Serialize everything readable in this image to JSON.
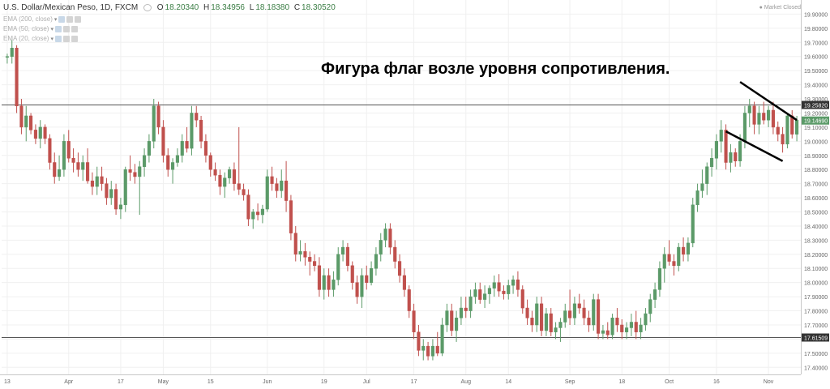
{
  "header": {
    "symbol": "U.S. Dollar/Mexican Peso, 1D, FXCM",
    "open_key": "O",
    "open": "18.20340",
    "high_key": "H",
    "high": "18.34956",
    "low_key": "L",
    "low": "18.18380",
    "close_key": "C",
    "close": "18.30520",
    "eye_icon": "eye-icon",
    "market_status": "Market Closed"
  },
  "indicators": [
    {
      "label": "EMA (200, close)"
    },
    {
      "label": "EMA (50, close)"
    },
    {
      "label": "EMA (20, close)"
    }
  ],
  "annotation": "Фигура флаг возле уровня сопротивления.",
  "colors": {
    "up": "#5b9a68",
    "down": "#c0504d",
    "level": "#555555",
    "last_price_bg": "#5b9a68"
  },
  "chart_data": {
    "type": "candlestick",
    "ylim": [
      17.35,
      20.0
    ],
    "y_ticks": [
      "17.40000",
      "17.50000",
      "17.60000",
      "17.70000",
      "17.80000",
      "17.90000",
      "18.00000",
      "18.10000",
      "18.20000",
      "18.30000",
      "18.40000",
      "18.50000",
      "18.60000",
      "18.70000",
      "18.80000",
      "18.90000",
      "19.00000",
      "19.10000",
      "19.20000",
      "19.30000",
      "19.40000",
      "19.50000",
      "19.60000",
      "19.70000",
      "19.80000",
      "19.90000",
      "20.00000"
    ],
    "x_ticks": [
      {
        "label": "13",
        "index": 0
      },
      {
        "label": "Apr",
        "index": 13
      },
      {
        "label": "17",
        "index": 24
      },
      {
        "label": "May",
        "index": 33
      },
      {
        "label": "15",
        "index": 43
      },
      {
        "label": "Jun",
        "index": 55
      },
      {
        "label": "19",
        "index": 67
      },
      {
        "label": "Jul",
        "index": 76
      },
      {
        "label": "17",
        "index": 86
      },
      {
        "label": "Aug",
        "index": 97
      },
      {
        "label": "14",
        "index": 106
      },
      {
        "label": "Sep",
        "index": 119
      },
      {
        "label": "18",
        "index": 130
      },
      {
        "label": "Oct",
        "index": 140
      },
      {
        "label": "16",
        "index": 150
      },
      {
        "label": "Nov",
        "index": 161
      }
    ],
    "levels": [
      {
        "label": "19.25820",
        "value": 19.2582
      },
      {
        "label": "17.61509",
        "value": 17.61509
      }
    ],
    "last_price": {
      "label": "19.14690",
      "value": 19.1469
    },
    "trendlines": [
      {
        "start": {
          "index": 155,
          "value": 19.42
        },
        "end": {
          "index": 167,
          "value": 19.15
        }
      },
      {
        "start": {
          "index": 152,
          "value": 19.07
        },
        "end": {
          "index": 164,
          "value": 18.86
        }
      }
    ],
    "candles": [
      [
        19.6,
        19.62,
        19.55,
        19.6
      ],
      [
        19.6,
        19.72,
        19.55,
        19.66
      ],
      [
        19.66,
        19.68,
        19.2,
        19.25
      ],
      [
        19.25,
        19.3,
        19.05,
        19.1
      ],
      [
        19.1,
        19.25,
        19.0,
        19.18
      ],
      [
        19.18,
        19.2,
        19.05,
        19.08
      ],
      [
        19.08,
        19.12,
        18.98,
        19.02
      ],
      [
        19.02,
        19.15,
        18.95,
        19.1
      ],
      [
        19.1,
        19.12,
        18.98,
        19.02
      ],
      [
        19.02,
        19.05,
        18.8,
        18.85
      ],
      [
        18.85,
        18.92,
        18.7,
        18.75
      ],
      [
        18.75,
        18.9,
        18.72,
        18.8
      ],
      [
        18.8,
        19.05,
        18.75,
        19.0
      ],
      [
        19.0,
        19.08,
        18.85,
        18.88
      ],
      [
        18.88,
        18.95,
        18.78,
        18.85
      ],
      [
        18.85,
        18.92,
        18.75,
        18.8
      ],
      [
        18.8,
        18.9,
        18.72,
        18.85
      ],
      [
        18.85,
        18.95,
        18.7,
        18.72
      ],
      [
        18.72,
        18.78,
        18.62,
        18.68
      ],
      [
        18.68,
        18.82,
        18.62,
        18.75
      ],
      [
        18.75,
        18.82,
        18.65,
        18.7
      ],
      [
        18.7,
        18.74,
        18.55,
        18.6
      ],
      [
        18.6,
        18.72,
        18.55,
        18.66
      ],
      [
        18.66,
        18.7,
        18.48,
        18.52
      ],
      [
        18.52,
        18.6,
        18.45,
        18.55
      ],
      [
        18.55,
        18.82,
        18.5,
        18.8
      ],
      [
        18.8,
        18.9,
        18.72,
        18.78
      ],
      [
        18.78,
        18.84,
        18.7,
        18.75
      ],
      [
        18.75,
        18.86,
        18.48,
        18.82
      ],
      [
        18.82,
        18.95,
        18.75,
        18.9
      ],
      [
        18.9,
        19.05,
        18.85,
        19.0
      ],
      [
        19.0,
        19.3,
        18.95,
        19.25
      ],
      [
        19.25,
        19.28,
        19.05,
        19.1
      ],
      [
        19.1,
        19.15,
        18.85,
        18.9
      ],
      [
        18.9,
        18.95,
        18.75,
        18.8
      ],
      [
        18.8,
        18.88,
        18.7,
        18.85
      ],
      [
        18.85,
        18.95,
        18.82,
        18.9
      ],
      [
        18.9,
        19.05,
        18.85,
        19.0
      ],
      [
        19.0,
        19.1,
        18.92,
        18.95
      ],
      [
        18.95,
        19.25,
        18.9,
        19.2
      ],
      [
        19.2,
        19.25,
        19.1,
        19.15
      ],
      [
        19.15,
        19.18,
        18.95,
        19.0
      ],
      [
        19.0,
        19.05,
        18.85,
        18.9
      ],
      [
        18.9,
        18.92,
        18.75,
        18.8
      ],
      [
        18.8,
        18.85,
        18.72,
        18.76
      ],
      [
        18.76,
        18.8,
        18.62,
        18.68
      ],
      [
        18.68,
        18.78,
        18.6,
        18.74
      ],
      [
        18.74,
        18.82,
        18.7,
        18.8
      ],
      [
        18.8,
        18.85,
        18.65,
        18.7
      ],
      [
        18.7,
        19.1,
        18.62,
        18.66
      ],
      [
        18.66,
        18.7,
        18.58,
        18.62
      ],
      [
        18.62,
        18.66,
        18.4,
        18.45
      ],
      [
        18.45,
        18.52,
        18.38,
        18.5
      ],
      [
        18.5,
        18.56,
        18.44,
        18.48
      ],
      [
        18.48,
        18.55,
        18.42,
        18.52
      ],
      [
        18.52,
        18.8,
        18.5,
        18.75
      ],
      [
        18.75,
        18.82,
        18.65,
        18.7
      ],
      [
        18.7,
        18.74,
        18.6,
        18.65
      ],
      [
        18.65,
        18.8,
        18.6,
        18.72
      ],
      [
        18.72,
        18.86,
        18.5,
        18.58
      ],
      [
        18.58,
        18.62,
        18.3,
        18.35
      ],
      [
        18.35,
        18.4,
        18.15,
        18.2
      ],
      [
        18.2,
        18.3,
        18.15,
        18.22
      ],
      [
        18.22,
        18.28,
        18.12,
        18.18
      ],
      [
        18.18,
        18.22,
        18.05,
        18.15
      ],
      [
        18.15,
        18.2,
        18.08,
        18.12
      ],
      [
        18.12,
        18.18,
        17.9,
        17.95
      ],
      [
        17.95,
        18.1,
        17.88,
        18.05
      ],
      [
        18.05,
        18.1,
        17.9,
        17.95
      ],
      [
        17.95,
        18.08,
        17.9,
        18.02
      ],
      [
        18.02,
        18.25,
        17.98,
        18.2
      ],
      [
        18.2,
        18.3,
        18.15,
        18.25
      ],
      [
        18.25,
        18.28,
        18.08,
        18.12
      ],
      [
        18.12,
        18.15,
        17.95,
        18.0
      ],
      [
        18.0,
        18.05,
        17.85,
        17.9
      ],
      [
        17.9,
        18.1,
        17.82,
        18.05
      ],
      [
        18.05,
        18.12,
        17.95,
        18.0
      ],
      [
        18.0,
        18.15,
        17.98,
        18.1
      ],
      [
        18.1,
        18.25,
        18.05,
        18.2
      ],
      [
        18.2,
        18.35,
        18.15,
        18.3
      ],
      [
        18.3,
        18.42,
        18.25,
        18.38
      ],
      [
        18.38,
        18.42,
        18.2,
        18.25
      ],
      [
        18.25,
        18.3,
        18.1,
        18.15
      ],
      [
        18.15,
        18.2,
        18.0,
        18.05
      ],
      [
        18.05,
        18.1,
        17.9,
        17.95
      ],
      [
        17.95,
        17.98,
        17.75,
        17.8
      ],
      [
        17.8,
        17.85,
        17.6,
        17.65
      ],
      [
        17.65,
        17.7,
        17.48,
        17.52
      ],
      [
        17.52,
        17.6,
        17.45,
        17.55
      ],
      [
        17.55,
        17.58,
        17.45,
        17.48
      ],
      [
        17.48,
        17.6,
        17.45,
        17.55
      ],
      [
        17.55,
        17.65,
        17.48,
        17.5
      ],
      [
        17.5,
        17.75,
        17.48,
        17.7
      ],
      [
        17.7,
        17.85,
        17.65,
        17.8
      ],
      [
        17.8,
        17.85,
        17.62,
        17.66
      ],
      [
        17.66,
        17.8,
        17.58,
        17.75
      ],
      [
        17.75,
        17.9,
        17.7,
        17.82
      ],
      [
        17.82,
        17.9,
        17.75,
        17.8
      ],
      [
        17.8,
        17.95,
        17.75,
        17.9
      ],
      [
        17.9,
        18.0,
        17.85,
        17.95
      ],
      [
        17.95,
        18.0,
        17.85,
        17.88
      ],
      [
        17.88,
        17.98,
        17.82,
        17.92
      ],
      [
        17.92,
        17.98,
        17.85,
        17.96
      ],
      [
        17.96,
        18.05,
        17.9,
        18.0
      ],
      [
        18.0,
        18.06,
        17.9,
        17.94
      ],
      [
        17.94,
        17.98,
        17.88,
        17.92
      ],
      [
        17.92,
        18.02,
        17.88,
        17.98
      ],
      [
        17.98,
        18.05,
        17.92,
        18.02
      ],
      [
        18.02,
        18.08,
        17.9,
        17.95
      ],
      [
        17.95,
        17.98,
        17.78,
        17.82
      ],
      [
        17.82,
        17.88,
        17.7,
        17.75
      ],
      [
        17.75,
        17.8,
        17.65,
        17.7
      ],
      [
        17.7,
        17.9,
        17.65,
        17.85
      ],
      [
        17.85,
        17.9,
        17.62,
        17.66
      ],
      [
        17.66,
        17.82,
        17.62,
        17.78
      ],
      [
        17.78,
        17.82,
        17.62,
        17.65
      ],
      [
        17.65,
        17.72,
        17.6,
        17.68
      ],
      [
        17.68,
        17.75,
        17.58,
        17.72
      ],
      [
        17.72,
        17.85,
        17.68,
        17.8
      ],
      [
        17.8,
        17.95,
        17.7,
        17.75
      ],
      [
        17.75,
        17.9,
        17.7,
        17.85
      ],
      [
        17.85,
        17.92,
        17.78,
        17.82
      ],
      [
        17.82,
        17.88,
        17.7,
        17.75
      ],
      [
        17.75,
        17.8,
        17.65,
        17.7
      ],
      [
        17.7,
        17.92,
        17.66,
        17.88
      ],
      [
        17.88,
        17.92,
        17.6,
        17.64
      ],
      [
        17.64,
        17.7,
        17.6,
        17.66
      ],
      [
        17.66,
        17.72,
        17.6,
        17.63
      ],
      [
        17.63,
        17.78,
        17.6,
        17.75
      ],
      [
        17.75,
        17.82,
        17.65,
        17.7
      ],
      [
        17.7,
        17.74,
        17.6,
        17.65
      ],
      [
        17.65,
        17.72,
        17.6,
        17.68
      ],
      [
        17.68,
        17.78,
        17.62,
        17.72
      ],
      [
        17.72,
        17.8,
        17.6,
        17.65
      ],
      [
        17.65,
        17.75,
        17.6,
        17.7
      ],
      [
        17.7,
        17.82,
        17.66,
        17.78
      ],
      [
        17.78,
        17.92,
        17.72,
        17.88
      ],
      [
        17.88,
        18.0,
        17.82,
        17.95
      ],
      [
        17.95,
        18.15,
        17.9,
        18.1
      ],
      [
        18.1,
        18.25,
        18.0,
        18.2
      ],
      [
        18.2,
        18.3,
        18.12,
        18.15
      ],
      [
        18.15,
        18.2,
        18.05,
        18.12
      ],
      [
        18.12,
        18.28,
        18.08,
        18.25
      ],
      [
        18.25,
        18.32,
        18.15,
        18.2
      ],
      [
        18.2,
        18.32,
        18.15,
        18.28
      ],
      [
        18.28,
        18.6,
        18.25,
        18.55
      ],
      [
        18.55,
        18.7,
        18.5,
        18.65
      ],
      [
        18.65,
        18.8,
        18.6,
        18.7
      ],
      [
        18.7,
        18.85,
        18.62,
        18.82
      ],
      [
        18.82,
        18.95,
        18.75,
        18.88
      ],
      [
        18.88,
        19.05,
        18.8,
        19.0
      ],
      [
        19.0,
        19.15,
        18.92,
        19.08
      ],
      [
        19.08,
        19.12,
        18.8,
        18.85
      ],
      [
        18.85,
        18.98,
        18.78,
        18.92
      ],
      [
        18.92,
        18.95,
        18.82,
        18.86
      ],
      [
        18.86,
        19.05,
        18.82,
        19.0
      ],
      [
        19.0,
        19.25,
        18.95,
        19.2
      ],
      [
        19.2,
        19.3,
        19.1,
        19.25
      ],
      [
        19.25,
        19.28,
        19.05,
        19.12
      ],
      [
        19.12,
        19.25,
        19.05,
        19.2
      ],
      [
        19.2,
        19.28,
        19.12,
        19.15
      ],
      [
        19.15,
        19.25,
        19.1,
        19.22
      ],
      [
        19.22,
        19.28,
        19.05,
        19.1
      ],
      [
        19.1,
        19.14,
        19.0,
        19.05
      ],
      [
        19.05,
        19.1,
        18.92,
        18.98
      ],
      [
        18.98,
        19.2,
        18.95,
        19.18
      ],
      [
        19.18,
        19.22,
        19.02,
        19.05
      ],
      [
        19.05,
        19.18,
        19.0,
        19.15
      ]
    ]
  }
}
